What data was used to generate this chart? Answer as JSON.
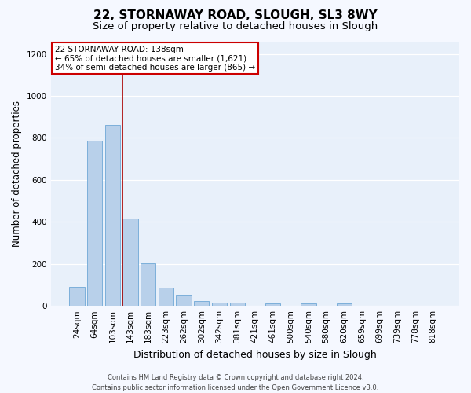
{
  "title": "22, STORNAWAY ROAD, SLOUGH, SL3 8WY",
  "subtitle": "Size of property relative to detached houses in Slough",
  "xlabel": "Distribution of detached houses by size in Slough",
  "ylabel": "Number of detached properties",
  "categories": [
    "24sqm",
    "64sqm",
    "103sqm",
    "143sqm",
    "183sqm",
    "223sqm",
    "262sqm",
    "302sqm",
    "342sqm",
    "381sqm",
    "421sqm",
    "461sqm",
    "500sqm",
    "540sqm",
    "580sqm",
    "620sqm",
    "659sqm",
    "699sqm",
    "739sqm",
    "778sqm",
    "818sqm"
  ],
  "values": [
    90,
    785,
    860,
    415,
    202,
    88,
    52,
    22,
    15,
    15,
    0,
    12,
    0,
    12,
    0,
    12,
    0,
    0,
    0,
    0,
    0
  ],
  "bar_color": "#b8d0ea",
  "bar_edge_color": "#6fa8d6",
  "marker_line_color": "#aa0000",
  "annotation_text": "22 STORNAWAY ROAD: 138sqm\n← 65% of detached houses are smaller (1,621)\n34% of semi-detached houses are larger (865) →",
  "annotation_box_color": "#ffffff",
  "annotation_box_edge": "#cc0000",
  "ylim": [
    0,
    1260
  ],
  "yticks": [
    0,
    200,
    400,
    600,
    800,
    1000,
    1200
  ],
  "footnote": "Contains HM Land Registry data © Crown copyright and database right 2024.\nContains public sector information licensed under the Open Government Licence v3.0.",
  "fig_bg_color": "#f5f8ff",
  "axes_bg_color": "#e8f0fa",
  "grid_color": "#ffffff",
  "title_fontsize": 11,
  "subtitle_fontsize": 9.5,
  "xlabel_fontsize": 9,
  "ylabel_fontsize": 8.5,
  "tick_fontsize": 7.5,
  "annot_fontsize": 7.5,
  "footnote_fontsize": 6
}
